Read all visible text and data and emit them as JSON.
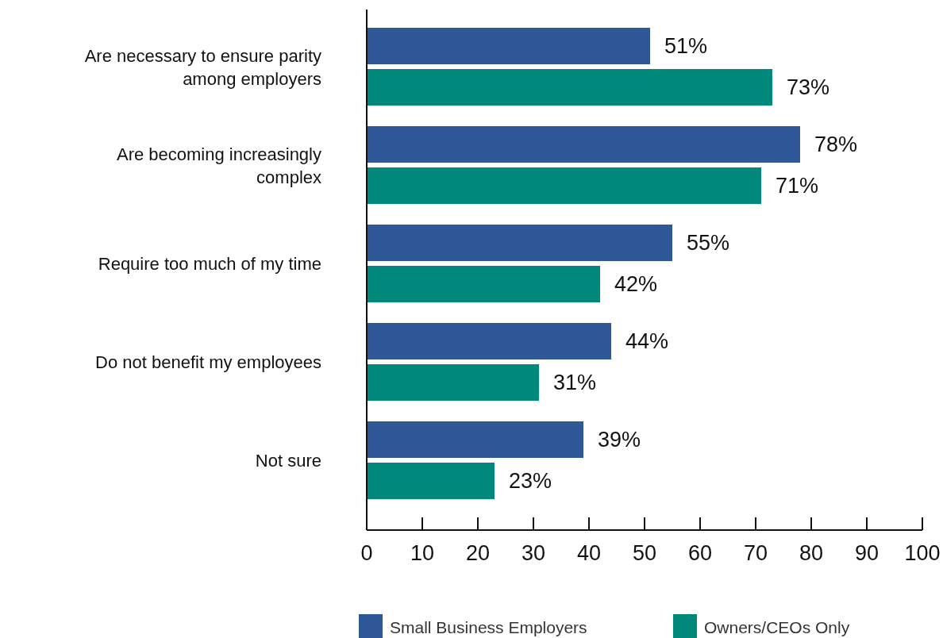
{
  "chart_data": {
    "type": "bar",
    "orientation": "horizontal",
    "categories": [
      "Are necessary to ensure parity among employers",
      "Are becoming increasingly complex",
      "Require too much of my time",
      "Do not benefit my employees",
      "Not sure"
    ],
    "series": [
      {
        "name": "Small Business Employers",
        "color": "#2d5797",
        "values": [
          51,
          78,
          55,
          44,
          39
        ],
        "value_labels": [
          "51%",
          "78%",
          "55%",
          "44%",
          "39%"
        ]
      },
      {
        "name": "Owners/CEOs Only",
        "color": "#00897b",
        "values": [
          73,
          71,
          42,
          31,
          23
        ],
        "value_labels": [
          "73%",
          "71%",
          "42%",
          "31%",
          "23%"
        ]
      }
    ],
    "xlim": [
      0,
      100
    ],
    "xticks": [
      0,
      10,
      20,
      30,
      40,
      50,
      60,
      70,
      80,
      90,
      100
    ],
    "grid": false,
    "legend": "bottom"
  }
}
